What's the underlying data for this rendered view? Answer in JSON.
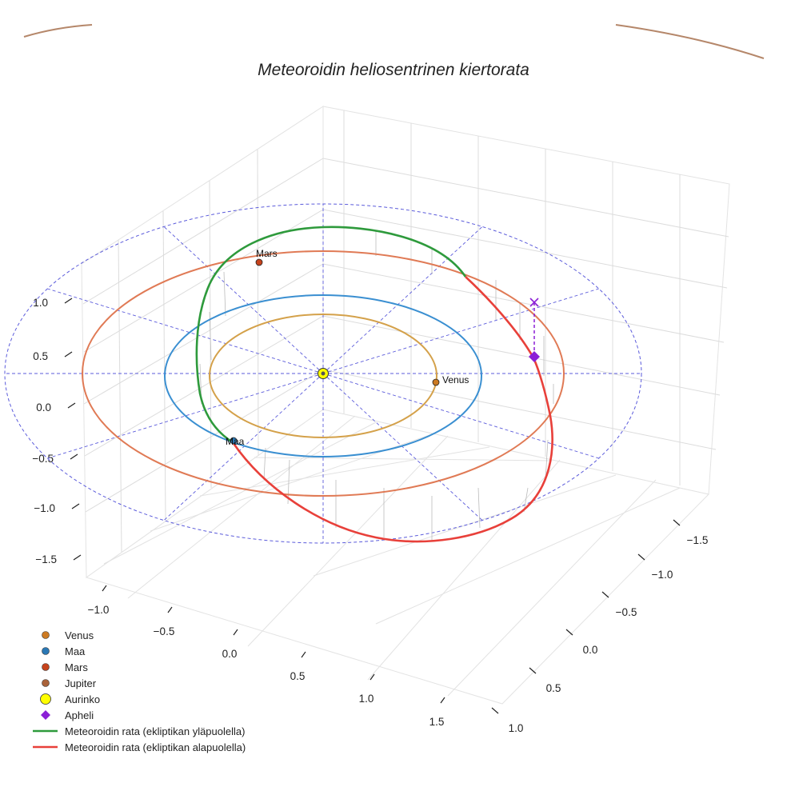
{
  "chart_data": {
    "type": "3d-orbit",
    "title": "Meteoroidin heliosentrinen kiertorata",
    "axes": {
      "x_ticks": [
        "−1.0",
        "−0.5",
        "0.0",
        "0.5",
        "1.0",
        "1.5"
      ],
      "y_ticks": [
        "−1.5",
        "−1.0",
        "−0.5",
        "0.0",
        "0.5",
        "1.0"
      ],
      "z_ticks": [
        "1.0",
        "0.5",
        "0.0",
        "−0.5",
        "−1.0",
        "−1.5"
      ],
      "grid": true
    },
    "orbits": [
      {
        "name": "Venus",
        "radius_au": 0.72,
        "color": "#d4a14a"
      },
      {
        "name": "Maa",
        "radius_au": 1.0,
        "color": "#3a8fd1"
      },
      {
        "name": "Mars",
        "radius_au": 1.52,
        "color": "#e07a55"
      },
      {
        "name": "Jupiter",
        "radius_au": 5.2,
        "color": "#b5876a"
      }
    ],
    "planet_labels": [
      {
        "name": "Venus",
        "text": "Venus"
      },
      {
        "name": "Maa",
        "text": "Maa"
      },
      {
        "name": "Mars",
        "text": "Mars"
      }
    ],
    "meteoroid": {
      "above_color": "#2e9a3c",
      "below_color": "#e8403a",
      "aphelion_color": "#8b1fd6"
    },
    "legend": [
      {
        "label": "Venus",
        "kind": "dot",
        "color": "#cc7a22"
      },
      {
        "label": "Maa",
        "kind": "dot",
        "color": "#2a78b5"
      },
      {
        "label": "Mars",
        "kind": "dot",
        "color": "#c6431c"
      },
      {
        "label": "Jupiter",
        "kind": "dot",
        "color": "#a9623a"
      },
      {
        "label": "Aurinko",
        "kind": "sun",
        "color": "#ffff00"
      },
      {
        "label": "Apheli",
        "kind": "diamond",
        "color": "#8b1fd6"
      },
      {
        "label": "Meteoroidin rata (ekliptikan yläpuolella)",
        "kind": "line",
        "color": "#2e9a3c"
      },
      {
        "label": "Meteoroidin rata (ekliptikan alapuolella)",
        "kind": "line",
        "color": "#e8403a"
      }
    ]
  }
}
